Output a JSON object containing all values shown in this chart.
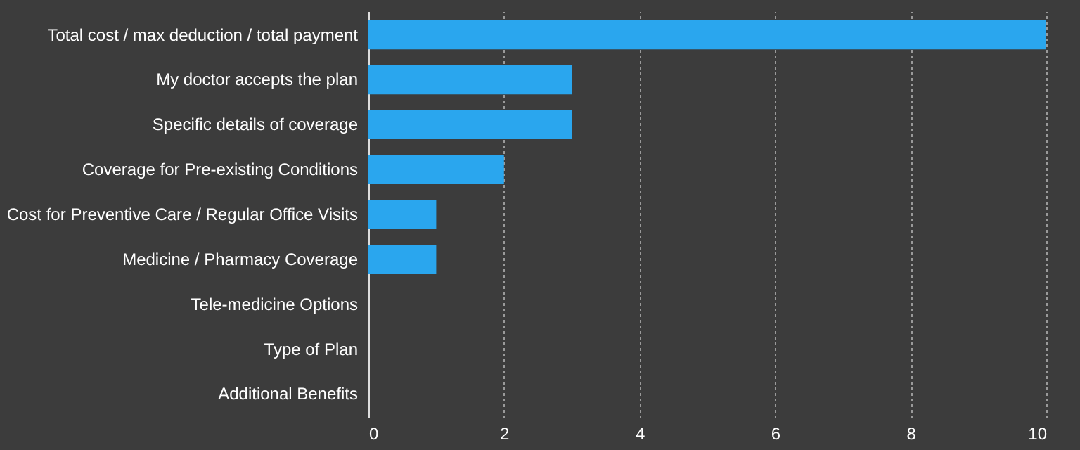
{
  "chart_data": {
    "type": "bar",
    "orientation": "horizontal",
    "categories": [
      "Total cost / max deduction / total payment",
      "My doctor accepts the plan",
      "Specific details of coverage",
      "Coverage for Pre-existing Conditions",
      "Cost for Preventive Care / Regular Office Visits",
      "Medicine / Pharmacy Coverage",
      "Tele-medicine Options",
      "Type of Plan",
      "Additional Benefits"
    ],
    "values": [
      10,
      3,
      3,
      2,
      1,
      1,
      0,
      0,
      0
    ],
    "color": "#2aa6ee",
    "xlim": [
      0,
      10
    ],
    "xticks": [
      0,
      2,
      4,
      6,
      8,
      10
    ],
    "grid": "x"
  }
}
